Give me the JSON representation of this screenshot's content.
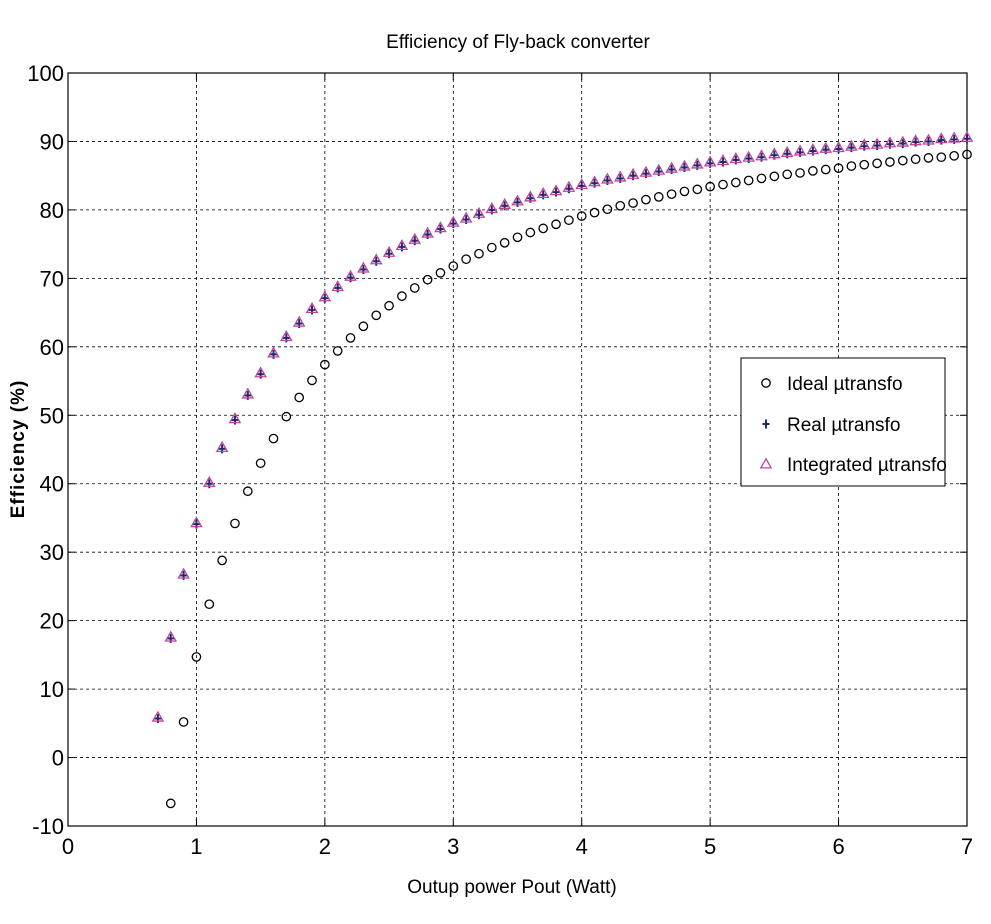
{
  "chart_data": {
    "type": "scatter",
    "title": "Efficiency of Fly-back converter",
    "xlabel": "Outup power Pout (Watt)",
    "ylabel": "Efficiency (%)",
    "xlim": [
      0,
      7
    ],
    "ylim": [
      -10,
      100
    ],
    "xticks": [
      0,
      1,
      2,
      3,
      4,
      5,
      6,
      7
    ],
    "yticks": [
      -10,
      0,
      10,
      20,
      30,
      40,
      50,
      60,
      70,
      80,
      90,
      100
    ],
    "grid": true,
    "legend_position": "right",
    "series": [
      {
        "name": "Ideal µtransfo",
        "marker": "circle",
        "color": "#000000",
        "x": [
          0.8,
          0.9,
          1.0,
          1.1,
          1.2,
          1.3,
          1.4,
          1.5,
          1.6,
          1.7,
          1.8,
          1.9,
          2.0,
          2.1,
          2.2,
          2.3,
          2.4,
          2.5,
          2.6,
          2.7,
          2.8,
          2.9,
          3.0,
          3.1,
          3.2,
          3.3,
          3.4,
          3.5,
          3.6,
          3.7,
          3.8,
          3.9,
          4.0,
          4.1,
          4.2,
          4.3,
          4.4,
          4.5,
          4.6,
          4.7,
          4.8,
          4.9,
          5.0,
          5.1,
          5.2,
          5.3,
          5.4,
          5.5,
          5.6,
          5.7,
          5.8,
          5.9,
          6.0,
          6.1,
          6.2,
          6.3,
          6.4,
          6.5,
          6.6,
          6.7,
          6.8,
          6.9,
          7.0
        ],
        "y": [
          -6.7,
          5.2,
          14.7,
          22.4,
          28.8,
          34.2,
          38.9,
          43.0,
          46.6,
          49.8,
          52.6,
          55.1,
          57.4,
          59.4,
          61.3,
          63.0,
          64.6,
          66.0,
          67.4,
          68.6,
          69.8,
          70.8,
          71.8,
          72.8,
          73.6,
          74.5,
          75.2,
          76.0,
          76.7,
          77.3,
          77.9,
          78.5,
          79.1,
          79.6,
          80.1,
          80.6,
          81.0,
          81.5,
          81.9,
          82.3,
          82.7,
          83.0,
          83.4,
          83.7,
          84.0,
          84.3,
          84.6,
          84.9,
          85.2,
          85.4,
          85.7,
          85.9,
          86.1,
          86.4,
          86.6,
          86.8,
          87.0,
          87.2,
          87.4,
          87.6,
          87.7,
          87.9,
          88.1
        ]
      },
      {
        "name": "Real µtransfo",
        "marker": "plus",
        "color": "#1f2a6e",
        "x": [
          0.7,
          0.8,
          0.9,
          1.0,
          1.1,
          1.2,
          1.3,
          1.4,
          1.5,
          1.6,
          1.7,
          1.8,
          1.9,
          2.0,
          2.1,
          2.2,
          2.3,
          2.4,
          2.5,
          2.6,
          2.7,
          2.8,
          2.9,
          3.0,
          3.1,
          3.2,
          3.3,
          3.4,
          3.5,
          3.6,
          3.7,
          3.8,
          3.9,
          4.0,
          4.1,
          4.2,
          4.3,
          4.4,
          4.5,
          4.6,
          4.7,
          4.8,
          4.9,
          5.0,
          5.1,
          5.2,
          5.3,
          5.4,
          5.5,
          5.6,
          5.7,
          5.8,
          5.9,
          6.0,
          6.1,
          6.2,
          6.3,
          6.4,
          6.5,
          6.6,
          6.7,
          6.8,
          6.9,
          7.0
        ],
        "y": [
          5.7,
          17.4,
          26.6,
          34.1,
          40.0,
          45.1,
          49.3,
          52.9,
          56.0,
          58.9,
          61.3,
          63.4,
          65.4,
          67.1,
          68.6,
          70.1,
          71.3,
          72.5,
          73.6,
          74.6,
          75.5,
          76.4,
          77.2,
          78.0,
          78.6,
          79.3,
          80.0,
          80.6,
          81.1,
          81.7,
          82.2,
          82.6,
          83.1,
          83.5,
          83.9,
          84.3,
          84.6,
          85.0,
          85.3,
          85.6,
          85.9,
          86.2,
          86.5,
          86.8,
          87.0,
          87.3,
          87.5,
          87.7,
          88.0,
          88.2,
          88.4,
          88.6,
          88.8,
          88.9,
          89.1,
          89.3,
          89.4,
          89.6,
          89.7,
          89.9,
          90.0,
          90.2,
          90.3,
          90.4
        ]
      },
      {
        "name": "Integrated µtransfo",
        "marker": "triangle",
        "color": "#c0449a",
        "x": [
          0.7,
          0.8,
          0.9,
          1.0,
          1.1,
          1.2,
          1.3,
          1.4,
          1.5,
          1.6,
          1.7,
          1.8,
          1.9,
          2.0,
          2.1,
          2.2,
          2.3,
          2.4,
          2.5,
          2.6,
          2.7,
          2.8,
          2.9,
          3.0,
          3.1,
          3.2,
          3.3,
          3.4,
          3.5,
          3.6,
          3.7,
          3.8,
          3.9,
          4.0,
          4.1,
          4.2,
          4.3,
          4.4,
          4.5,
          4.6,
          4.7,
          4.8,
          4.9,
          5.0,
          5.1,
          5.2,
          5.3,
          5.4,
          5.5,
          5.6,
          5.7,
          5.8,
          5.9,
          6.0,
          6.1,
          6.2,
          6.3,
          6.4,
          6.5,
          6.6,
          6.7,
          6.8,
          6.9,
          7.0
        ],
        "y": [
          5.9,
          17.6,
          26.8,
          34.3,
          40.2,
          45.3,
          49.5,
          53.1,
          56.2,
          59.1,
          61.5,
          63.6,
          65.6,
          67.3,
          68.8,
          70.3,
          71.5,
          72.7,
          73.8,
          74.8,
          75.7,
          76.6,
          77.4,
          78.2,
          78.8,
          79.5,
          80.2,
          80.8,
          81.3,
          81.9,
          82.4,
          82.8,
          83.3,
          83.7,
          84.1,
          84.5,
          84.8,
          85.2,
          85.5,
          85.8,
          86.1,
          86.4,
          86.7,
          87.0,
          87.2,
          87.5,
          87.7,
          87.9,
          88.2,
          88.4,
          88.6,
          88.8,
          89.0,
          89.1,
          89.3,
          89.5,
          89.6,
          89.8,
          89.9,
          90.1,
          90.2,
          90.4,
          90.5,
          90.6
        ]
      }
    ]
  }
}
